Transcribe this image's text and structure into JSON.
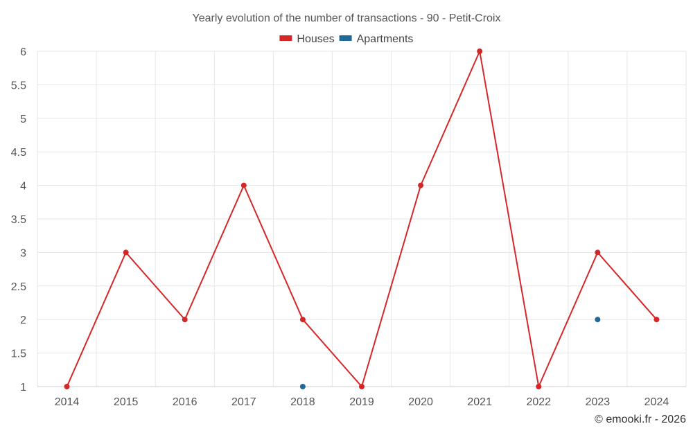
{
  "chart_data": {
    "type": "line",
    "title": "Yearly evolution of the number of transactions - 90 - Petit-Croix",
    "categories": [
      "2014",
      "2015",
      "2016",
      "2017",
      "2018",
      "2019",
      "2020",
      "2021",
      "2022",
      "2023",
      "2024"
    ],
    "series": [
      {
        "name": "Houses",
        "color": "#d62728",
        "values": [
          1,
          3,
          2,
          4,
          2,
          1,
          4,
          6,
          1,
          3,
          2
        ]
      },
      {
        "name": "Apartments",
        "color": "#1f6a99",
        "values": [
          null,
          null,
          null,
          null,
          1,
          null,
          null,
          null,
          null,
          2,
          null
        ]
      }
    ],
    "yticks": [
      "1",
      "1.5",
      "2",
      "2.5",
      "3",
      "3.5",
      "4",
      "4.5",
      "5",
      "5.5",
      "6"
    ],
    "ylim": [
      1,
      6
    ],
    "grid": true,
    "legend_position": "top-center"
  },
  "credit": "© emooki.fr - 2026"
}
